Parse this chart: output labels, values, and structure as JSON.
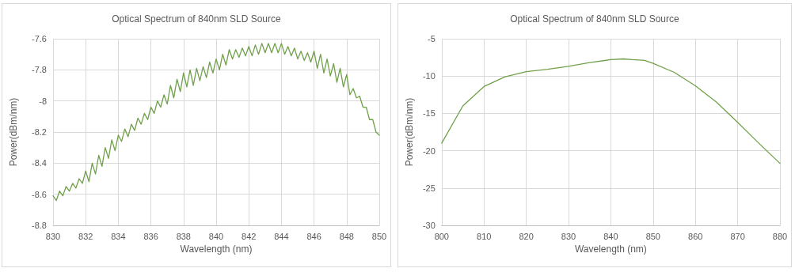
{
  "chart_data": [
    {
      "type": "line",
      "title": "Optical Spectrum of 840nm SLD Source",
      "xlabel": "Wavelength (nm)",
      "ylabel": "Power(dBm/nm)",
      "xlim": [
        830,
        850
      ],
      "xticks": [
        830,
        832,
        834,
        836,
        838,
        840,
        842,
        844,
        846,
        848,
        850
      ],
      "ylim": [
        -8.8,
        -7.6
      ],
      "yticks": [
        -8.8,
        -8.6,
        -8.4,
        -8.2,
        -8,
        -7.8,
        -7.6
      ],
      "grid": true,
      "marker": "none",
      "line_style": "solid",
      "series": [
        {
          "color": "#70a04a",
          "x": [
            830,
            830.2,
            830.4,
            830.6,
            830.8,
            831,
            831.2,
            831.4,
            831.6,
            831.8,
            832,
            832.2,
            832.4,
            832.6,
            832.8,
            833,
            833.2,
            833.4,
            833.6,
            833.8,
            834,
            834.2,
            834.4,
            834.6,
            834.8,
            835,
            835.2,
            835.4,
            835.6,
            835.8,
            836,
            836.2,
            836.4,
            836.6,
            836.8,
            837,
            837.2,
            837.4,
            837.6,
            837.8,
            838,
            838.2,
            838.4,
            838.6,
            838.8,
            839,
            839.2,
            839.4,
            839.6,
            839.8,
            840,
            840.2,
            840.4,
            840.6,
            840.8,
            841,
            841.2,
            841.4,
            841.6,
            841.8,
            842,
            842.2,
            842.4,
            842.6,
            842.8,
            843,
            843.2,
            843.4,
            843.6,
            843.8,
            844,
            844.2,
            844.4,
            844.6,
            844.8,
            845,
            845.2,
            845.4,
            845.6,
            845.8,
            846,
            846.2,
            846.4,
            846.6,
            846.8,
            847,
            847.2,
            847.4,
            847.6,
            847.8,
            848,
            848.2,
            848.4,
            848.6,
            848.8,
            849,
            849.2,
            849.4,
            849.6,
            849.8,
            850
          ],
          "values": [
            -8.61,
            -8.64,
            -8.58,
            -8.61,
            -8.55,
            -8.58,
            -8.53,
            -8.56,
            -8.5,
            -8.53,
            -8.45,
            -8.52,
            -8.4,
            -8.47,
            -8.35,
            -8.42,
            -8.3,
            -8.37,
            -8.25,
            -8.32,
            -8.22,
            -8.26,
            -8.18,
            -8.23,
            -8.15,
            -8.19,
            -8.11,
            -8.15,
            -8.08,
            -8.12,
            -8.04,
            -8.08,
            -8,
            -8.04,
            -7.96,
            -8.02,
            -7.9,
            -7.98,
            -7.86,
            -7.94,
            -7.82,
            -7.91,
            -7.8,
            -7.9,
            -7.79,
            -7.87,
            -7.78,
            -7.85,
            -7.75,
            -7.82,
            -7.73,
            -7.8,
            -7.7,
            -7.77,
            -7.67,
            -7.73,
            -7.67,
            -7.72,
            -7.66,
            -7.71,
            -7.65,
            -7.71,
            -7.64,
            -7.7,
            -7.63,
            -7.69,
            -7.63,
            -7.69,
            -7.63,
            -7.69,
            -7.63,
            -7.7,
            -7.65,
            -7.71,
            -7.66,
            -7.73,
            -7.68,
            -7.74,
            -7.69,
            -7.75,
            -7.68,
            -7.79,
            -7.7,
            -7.82,
            -7.73,
            -7.84,
            -7.76,
            -7.88,
            -7.79,
            -7.91,
            -7.83,
            -7.96,
            -7.92,
            -7.98,
            -7.97,
            -8.04,
            -8.04,
            -8.12,
            -8.12,
            -8.2,
            -8.22
          ]
        }
      ]
    },
    {
      "type": "line",
      "title": "Optical Spectrum of 840nm SLD Source",
      "xlabel": "Wavelength (nm)",
      "ylabel": "Power(dBm/nm)",
      "xlim": [
        800,
        880
      ],
      "xticks": [
        800,
        810,
        820,
        830,
        840,
        850,
        860,
        870,
        880
      ],
      "ylim": [
        -30,
        -5
      ],
      "yticks": [
        -30,
        -25,
        -20,
        -15,
        -10,
        -5
      ],
      "grid": true,
      "marker": "none",
      "line_style": "solid",
      "series": [
        {
          "color": "#70a04a",
          "x": [
            800,
            805,
            810,
            815,
            820,
            825,
            830,
            835,
            840,
            843,
            845,
            848,
            850,
            855,
            860,
            865,
            870,
            875,
            880
          ],
          "values": [
            -19,
            -14,
            -11.4,
            -10.1,
            -9.4,
            -9.1,
            -8.7,
            -8.2,
            -7.8,
            -7.7,
            -7.8,
            -7.9,
            -8.3,
            -9.5,
            -11.3,
            -13.5,
            -16.2,
            -19,
            -21.7
          ]
        }
      ]
    }
  ]
}
